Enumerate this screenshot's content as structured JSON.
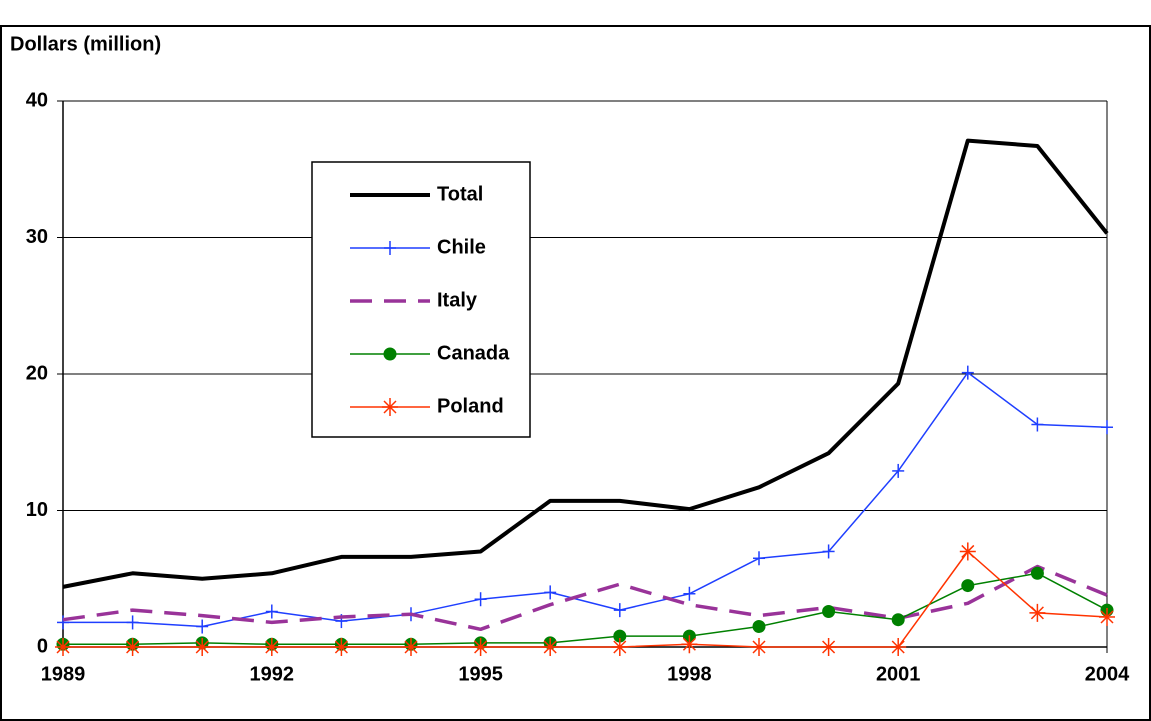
{
  "chart_data": {
    "type": "line",
    "y_label": "Dollars (million)",
    "x": [
      1989,
      1990,
      1991,
      1992,
      1993,
      1994,
      1995,
      1996,
      1997,
      1998,
      1999,
      2000,
      2001,
      2002,
      2003,
      2004
    ],
    "xlim": [
      1989,
      2004
    ],
    "xticks": [
      1989,
      1992,
      1995,
      1998,
      2001,
      2004
    ],
    "ylim": [
      0,
      40
    ],
    "yticks": [
      0,
      10,
      20,
      30,
      40
    ],
    "grid": true,
    "series": [
      {
        "name": "Total",
        "color": "#000000",
        "width": 4,
        "dash": false,
        "marker": "none",
        "values": [
          4.4,
          5.4,
          5.0,
          5.4,
          6.6,
          6.6,
          7.0,
          10.7,
          10.7,
          10.1,
          11.7,
          14.2,
          19.3,
          37.1,
          36.7,
          30.3
        ]
      },
      {
        "name": "Chile",
        "color": "#1f3fff",
        "width": 1.5,
        "dash": false,
        "marker": "plus",
        "values": [
          1.8,
          1.8,
          1.5,
          2.6,
          1.9,
          2.4,
          3.5,
          4.0,
          2.7,
          3.9,
          6.5,
          7.0,
          12.9,
          20.1,
          16.3,
          16.1
        ]
      },
      {
        "name": "Italy",
        "color": "#993399",
        "width": 3.5,
        "dash": true,
        "marker": "none",
        "values": [
          2.0,
          2.7,
          2.3,
          1.8,
          2.2,
          2.4,
          1.3,
          3.1,
          4.6,
          3.1,
          2.3,
          2.9,
          2.1,
          3.2,
          5.9,
          3.8
        ]
      },
      {
        "name": "Canada",
        "color": "#008000",
        "width": 1.5,
        "dash": false,
        "marker": "circle",
        "values": [
          0.2,
          0.2,
          0.3,
          0.2,
          0.2,
          0.2,
          0.3,
          0.3,
          0.8,
          0.8,
          1.5,
          2.6,
          2.0,
          4.5,
          5.4,
          2.7
        ]
      },
      {
        "name": "Poland",
        "color": "#ff3300",
        "width": 1.5,
        "dash": false,
        "marker": "star",
        "values": [
          0,
          0,
          0,
          0,
          0,
          0,
          0,
          0,
          0,
          0.2,
          0,
          0,
          0,
          7.0,
          2.5,
          2.2
        ]
      }
    ]
  }
}
